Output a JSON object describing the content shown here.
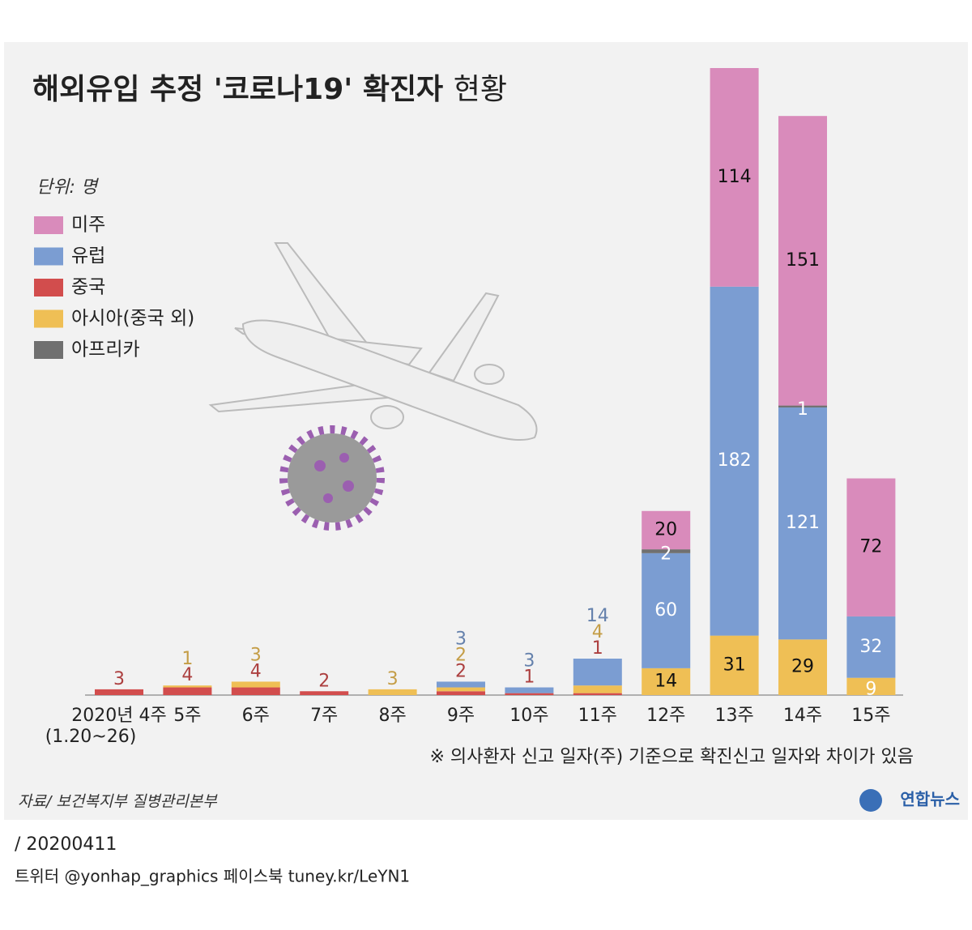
{
  "chart_data": {
    "type": "stacked-bar",
    "title": "해외유입 추정 '코로나19' 확진자",
    "title_suffix": "현황",
    "unit_label": "단위: 명",
    "categories": [
      "2020년 4주",
      "5주",
      "6주",
      "7주",
      "8주",
      "9주",
      "10주",
      "11주",
      "12주",
      "13주",
      "14주",
      "15주"
    ],
    "first_category_note": "(1.20~26)",
    "series": [
      {
        "name": "미주",
        "color": "#d98bbb",
        "values": [
          null,
          null,
          null,
          null,
          null,
          null,
          null,
          null,
          20,
          114,
          151,
          72
        ]
      },
      {
        "name": "유럽",
        "color": "#7b9dd2",
        "values": [
          null,
          null,
          null,
          null,
          null,
          3,
          3,
          14,
          60,
          182,
          121,
          32
        ]
      },
      {
        "name": "중국",
        "color": "#d24d4d",
        "values": [
          3,
          4,
          4,
          2,
          null,
          2,
          1,
          1,
          null,
          null,
          null,
          null
        ]
      },
      {
        "name": "아시아(중국 외)",
        "color": "#efbf55",
        "values": [
          null,
          1,
          3,
          null,
          3,
          2,
          null,
          4,
          14,
          31,
          29,
          9
        ]
      },
      {
        "name": "아프리카",
        "color": "#707070",
        "values": [
          null,
          null,
          null,
          null,
          null,
          null,
          null,
          null,
          2,
          null,
          1,
          null
        ]
      }
    ],
    "stack_order": [
      2,
      3,
      1,
      4,
      0
    ],
    "note": "※ 의사환자 신고 일자(주) 기준으로 확진신고 일자와 차이가 있음",
    "source": "자료/ 보건복지부 질병관리본부",
    "logo": "연합뉴스",
    "date": "/ 20200411",
    "footer": "트위터 @yonhap_graphics  페이스북 tuney.kr/LeYN1"
  }
}
